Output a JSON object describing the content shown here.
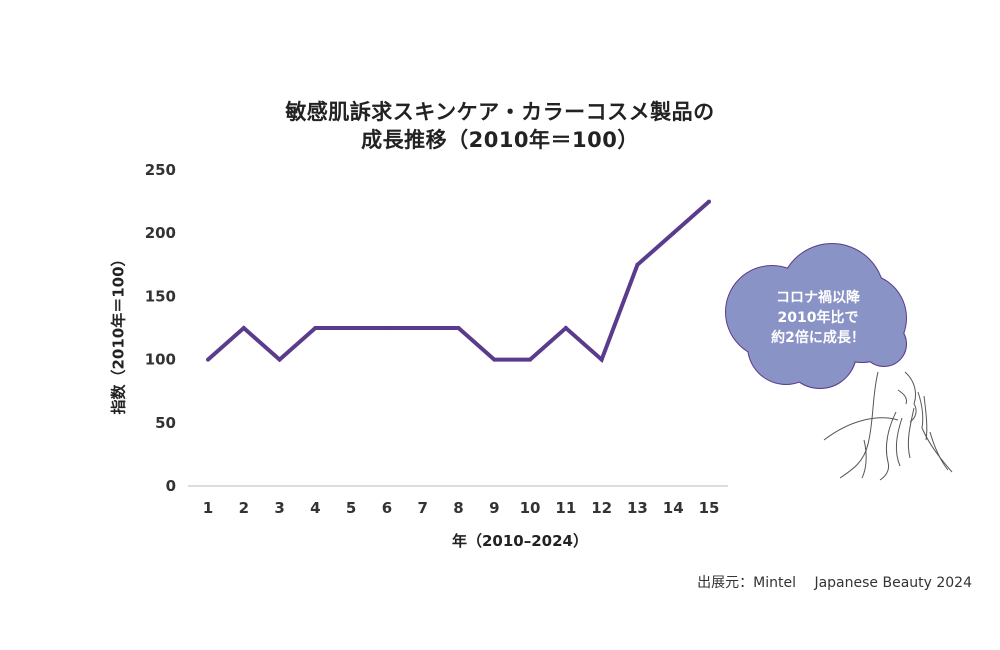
{
  "chart_data": {
    "type": "line",
    "title_lines": [
      "敏感肌訴求スキンケア・カラーコスメ製品の",
      "成長推移（2010年＝100）"
    ],
    "xlabel": "年（2010–2024）",
    "ylabel": "指数（2010年＝100）",
    "categories": [
      "1",
      "2",
      "3",
      "4",
      "5",
      "6",
      "7",
      "8",
      "9",
      "10",
      "11",
      "12",
      "13",
      "14",
      "15"
    ],
    "values": [
      100,
      125,
      100,
      125,
      125,
      125,
      125,
      125,
      100,
      100,
      125,
      100,
      175,
      200,
      225
    ],
    "ylim": [
      0,
      250
    ],
    "yticks": [
      0,
      50,
      100,
      150,
      200,
      250
    ],
    "grid": false,
    "line_color": "#5b3b8c"
  },
  "callout": {
    "lines": [
      "コロナ禍以降",
      "2010年比で",
      "約2倍に成長！"
    ],
    "fill_color": "#8a93c6",
    "border_color": "#5b3b8c"
  },
  "source": "出展元：Mintel　 Japanese Beauty 2024"
}
